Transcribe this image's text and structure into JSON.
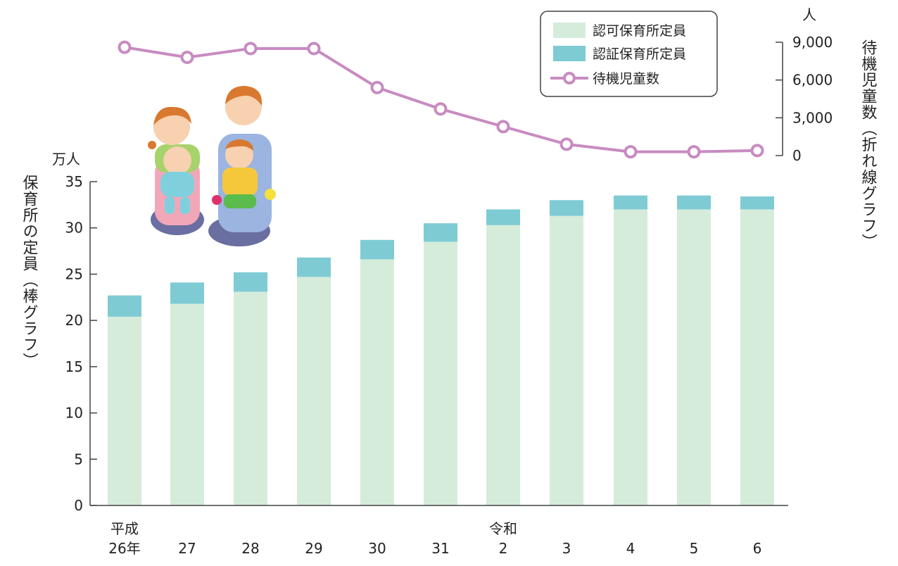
{
  "chart_data": {
    "type": "bar",
    "bar_axis": {
      "unit": "万人",
      "label": "保育所の定員（棒グラフ）",
      "ylim": [
        0,
        35
      ],
      "ticks": [
        "0",
        "5",
        "10",
        "15",
        "20",
        "25",
        "30",
        "35"
      ]
    },
    "line_axis": {
      "unit": "人",
      "label": "待機児童数（折れ線グラフ）",
      "ylim": [
        0,
        9000
      ],
      "ticks": [
        "0",
        "3,000",
        "6,000",
        "9,000"
      ]
    },
    "categories": [
      {
        "era": "平成",
        "label": "26年"
      },
      {
        "era": "",
        "label": "27"
      },
      {
        "era": "",
        "label": "28"
      },
      {
        "era": "",
        "label": "29"
      },
      {
        "era": "",
        "label": "30"
      },
      {
        "era": "",
        "label": "31"
      },
      {
        "era": "令和",
        "label": "2"
      },
      {
        "era": "",
        "label": "3"
      },
      {
        "era": "",
        "label": "4"
      },
      {
        "era": "",
        "label": "5"
      },
      {
        "era": "",
        "label": "6"
      }
    ],
    "series": [
      {
        "name": "認可保育所定員",
        "kind": "bar-stack",
        "color": "#d5ecda",
        "values": [
          20.4,
          21.8,
          23.1,
          24.7,
          26.6,
          28.5,
          30.3,
          31.3,
          32.0,
          32.0,
          32.0
        ]
      },
      {
        "name": "認証保育所定員",
        "kind": "bar-stack",
        "color": "#7ecbd4",
        "values": [
          2.3,
          2.3,
          2.1,
          2.1,
          2.1,
          2.0,
          1.7,
          1.7,
          1.5,
          1.5,
          1.4
        ]
      },
      {
        "name": "待機児童数",
        "kind": "line",
        "color": "#c88bc1",
        "values": [
          8600,
          7800,
          8500,
          8500,
          5400,
          3700,
          2300,
          900,
          300,
          300,
          400
        ]
      }
    ],
    "legend_position": "top-right"
  }
}
